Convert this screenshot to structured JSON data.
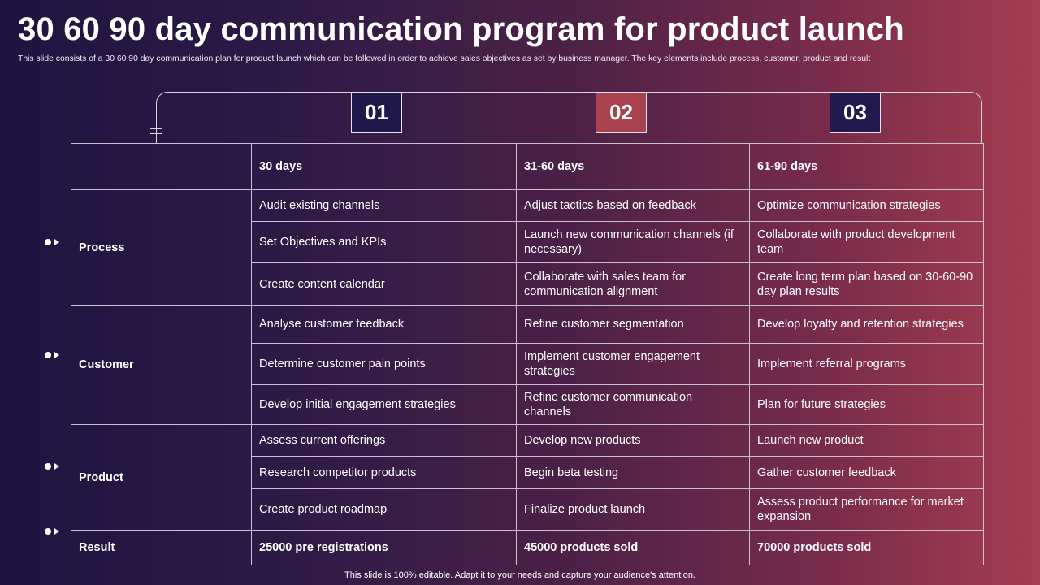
{
  "slide": {
    "title": "30 60 90 day communication program for product launch",
    "subtitle": "This slide consists of a 30 60 90 day communication plan for product launch which can be followed in order to achieve sales objectives as set by business manager. The key elements include process, customer, product and result",
    "footer": "This slide is 100% editable. Adapt it to your needs and capture your audience's attention."
  },
  "steps": [
    "01",
    "02",
    "03"
  ],
  "colors": {
    "step_1": "#1f1848",
    "step_2": "#a8424f",
    "step_3": "#221a4e",
    "background_left": "#1f1440",
    "background_right": "#a53e50"
  },
  "table": {
    "headers": [
      "",
      "30 days",
      "31-60 days",
      "61-90 days"
    ],
    "process": {
      "label": "Process",
      "rows": [
        [
          "Audit existing channels",
          "Adjust tactics based on feedback",
          "Optimize communication strategies"
        ],
        [
          "Set Objectives and KPIs",
          "Launch new communication channels (if necessary)",
          "Collaborate with product development team"
        ],
        [
          "Create content calendar",
          "Collaborate with sales team for communication alignment",
          "Create long term plan based on 30-60-90 day plan results"
        ]
      ]
    },
    "customer": {
      "label": "Customer",
      "rows": [
        [
          "Analyse customer feedback",
          "Refine customer segmentation",
          "Develop loyalty and retention strategies"
        ],
        [
          "Determine customer pain points",
          "Implement customer engagement strategies",
          "Implement referral programs"
        ],
        [
          "Develop initial engagement strategies",
          "Refine customer communication channels",
          "Plan for future strategies"
        ]
      ]
    },
    "product": {
      "label": "Product",
      "rows": [
        [
          "Assess current offerings",
          "Develop new products",
          "Launch new product"
        ],
        [
          "Research competitor products",
          "Begin beta testing",
          "Gather customer feedback"
        ],
        [
          "Create product roadmap",
          "Finalize product launch",
          "Assess product performance for market expansion"
        ]
      ]
    },
    "result": {
      "label": "Result",
      "values": [
        "25000 pre registrations",
        "45000 products sold",
        "70000 products sold"
      ]
    }
  }
}
